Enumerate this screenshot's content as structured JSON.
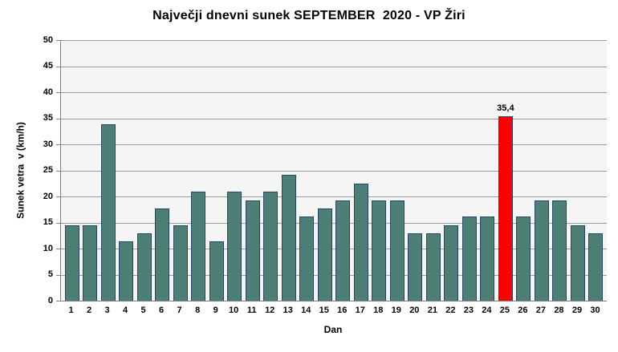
{
  "title": "Največji dnevni sunek SEPTEMBER  2020 - VP Žiri",
  "chart_data": {
    "type": "bar",
    "title": "Največji dnevni sunek SEPTEMBER  2020 - VP Žiri",
    "xlabel": "Dan",
    "ylabel": "Sunek vetra  v (km/h)",
    "ylim": [
      0,
      50
    ],
    "ytick_step": 5,
    "grid": true,
    "legend": "none",
    "categories": [
      "1",
      "2",
      "3",
      "4",
      "5",
      "6",
      "7",
      "8",
      "9",
      "10",
      "11",
      "12",
      "13",
      "14",
      "15",
      "16",
      "17",
      "18",
      "19",
      "20",
      "21",
      "22",
      "23",
      "24",
      "25",
      "26",
      "27",
      "28",
      "29",
      "30"
    ],
    "values": [
      14.5,
      14.5,
      33.8,
      11.4,
      13.0,
      17.7,
      14.5,
      20.9,
      11.4,
      20.9,
      19.3,
      20.9,
      24.1,
      16.1,
      17.7,
      19.3,
      22.5,
      19.3,
      19.3,
      13.0,
      13.0,
      14.5,
      16.1,
      16.1,
      35.4,
      16.1,
      19.3,
      19.3,
      14.5,
      13.0
    ],
    "annotation": {
      "day": "25",
      "index": 24,
      "label": "35,4"
    }
  },
  "colors": {
    "background": "#FFFFFF",
    "plot_background": "#F5F5F5",
    "gridline": "#9B9B9B",
    "axis_line": "#808080",
    "bar_fill": "#4D7F76",
    "bar_border": "#24466B",
    "highlight_fill": "#FF0000",
    "text": "#000000"
  }
}
